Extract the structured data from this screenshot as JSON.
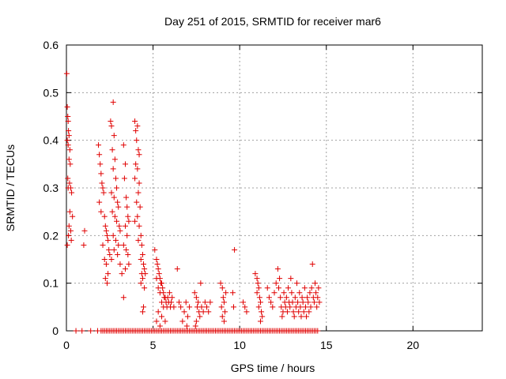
{
  "chart_data": {
    "type": "scatter",
    "title": "Day 251 of 2015, SRMTID for receiver mar6",
    "xlabel": "GPS time / hours",
    "ylabel": "SRMTID / TECUs",
    "xlim": [
      0,
      24
    ],
    "ylim": [
      0,
      0.6
    ],
    "xticks": [
      "0",
      "5",
      "10",
      "15",
      "20"
    ],
    "yticks": [
      "0",
      "0.1",
      "0.2",
      "0.3",
      "0.4",
      "0.5",
      "0.6"
    ],
    "grid": true,
    "marker": "+",
    "color": "#e00000",
    "series": [
      {
        "points": [
          [
            0.02,
            0.54
          ],
          [
            0.05,
            0.47
          ],
          [
            0.08,
            0.45
          ],
          [
            0.1,
            0.44
          ],
          [
            0.12,
            0.42
          ],
          [
            0.15,
            0.41
          ],
          [
            0.05,
            0.4
          ],
          [
            0.1,
            0.39
          ],
          [
            0.2,
            0.38
          ],
          [
            0.15,
            0.36
          ],
          [
            0.22,
            0.35
          ],
          [
            0.08,
            0.32
          ],
          [
            0.18,
            0.31
          ],
          [
            0.25,
            0.3
          ],
          [
            0.1,
            0.3
          ],
          [
            0.3,
            0.29
          ],
          [
            0.2,
            0.25
          ],
          [
            0.35,
            0.24
          ],
          [
            0.15,
            0.22
          ],
          [
            0.25,
            0.21
          ],
          [
            0.12,
            0.2
          ],
          [
            0.28,
            0.19
          ],
          [
            0.05,
            0.18
          ],
          [
            1.05,
            0.21
          ],
          [
            1.0,
            0.18
          ],
          [
            1.85,
            0.39
          ],
          [
            1.9,
            0.37
          ],
          [
            1.95,
            0.35
          ],
          [
            2.0,
            0.33
          ],
          [
            2.05,
            0.31
          ],
          [
            2.1,
            0.3
          ],
          [
            2.15,
            0.29
          ],
          [
            1.9,
            0.27
          ],
          [
            2.0,
            0.25
          ],
          [
            2.2,
            0.24
          ],
          [
            2.25,
            0.22
          ],
          [
            2.3,
            0.21
          ],
          [
            2.35,
            0.2
          ],
          [
            2.4,
            0.19
          ],
          [
            2.1,
            0.18
          ],
          [
            2.45,
            0.17
          ],
          [
            2.5,
            0.16
          ],
          [
            2.2,
            0.15
          ],
          [
            2.3,
            0.14
          ],
          [
            2.4,
            0.12
          ],
          [
            2.25,
            0.11
          ],
          [
            2.35,
            0.1
          ],
          [
            2.55,
            0.44
          ],
          [
            2.6,
            0.43
          ],
          [
            2.7,
            0.48
          ],
          [
            2.75,
            0.41
          ],
          [
            2.65,
            0.38
          ],
          [
            2.8,
            0.36
          ],
          [
            2.7,
            0.34
          ],
          [
            2.85,
            0.32
          ],
          [
            2.9,
            0.3
          ],
          [
            2.6,
            0.29
          ],
          [
            2.75,
            0.28
          ],
          [
            2.95,
            0.27
          ],
          [
            3.0,
            0.26
          ],
          [
            2.65,
            0.25
          ],
          [
            2.8,
            0.24
          ],
          [
            2.9,
            0.23
          ],
          [
            3.05,
            0.22
          ],
          [
            3.1,
            0.21
          ],
          [
            2.7,
            0.2
          ],
          [
            2.85,
            0.19
          ],
          [
            3.0,
            0.18
          ],
          [
            2.75,
            0.17
          ],
          [
            2.95,
            0.16
          ],
          [
            2.6,
            0.15
          ],
          [
            3.1,
            0.14
          ],
          [
            3.2,
            0.12
          ],
          [
            3.3,
            0.39
          ],
          [
            3.4,
            0.35
          ],
          [
            3.35,
            0.32
          ],
          [
            3.45,
            0.28
          ],
          [
            3.5,
            0.26
          ],
          [
            3.55,
            0.24
          ],
          [
            3.6,
            0.23
          ],
          [
            3.4,
            0.22
          ],
          [
            3.5,
            0.2
          ],
          [
            3.3,
            0.18
          ],
          [
            3.45,
            0.17
          ],
          [
            3.55,
            0.16
          ],
          [
            3.6,
            0.14
          ],
          [
            3.4,
            0.13
          ],
          [
            3.3,
            0.07
          ],
          [
            3.95,
            0.44
          ],
          [
            4.0,
            0.42
          ],
          [
            4.1,
            0.43
          ],
          [
            4.05,
            0.4
          ],
          [
            4.15,
            0.38
          ],
          [
            4.2,
            0.37
          ],
          [
            4.0,
            0.35
          ],
          [
            4.1,
            0.34
          ],
          [
            3.95,
            0.32
          ],
          [
            4.2,
            0.31
          ],
          [
            4.15,
            0.29
          ],
          [
            4.05,
            0.27
          ],
          [
            4.25,
            0.26
          ],
          [
            4.1,
            0.24
          ],
          [
            3.95,
            0.23
          ],
          [
            4.2,
            0.22
          ],
          [
            4.3,
            0.2
          ],
          [
            4.15,
            0.19
          ],
          [
            4.35,
            0.18
          ],
          [
            4.4,
            0.16
          ],
          [
            4.3,
            0.15
          ],
          [
            4.45,
            0.14
          ],
          [
            4.5,
            0.13
          ],
          [
            4.35,
            0.12
          ],
          [
            4.55,
            0.12
          ],
          [
            4.4,
            0.11
          ],
          [
            4.3,
            0.1
          ],
          [
            4.5,
            0.09
          ],
          [
            4.45,
            0.05
          ],
          [
            4.4,
            0.04
          ],
          [
            5.1,
            0.17
          ],
          [
            5.2,
            0.15
          ],
          [
            5.25,
            0.14
          ],
          [
            5.3,
            0.13
          ],
          [
            5.35,
            0.12
          ],
          [
            5.2,
            0.11
          ],
          [
            5.4,
            0.11
          ],
          [
            5.45,
            0.1
          ],
          [
            5.5,
            0.1
          ],
          [
            5.3,
            0.09
          ],
          [
            5.55,
            0.09
          ],
          [
            5.6,
            0.08
          ],
          [
            5.4,
            0.08
          ],
          [
            5.65,
            0.07
          ],
          [
            5.7,
            0.07
          ],
          [
            5.5,
            0.06
          ],
          [
            5.75,
            0.06
          ],
          [
            5.8,
            0.05
          ],
          [
            5.6,
            0.05
          ],
          [
            5.85,
            0.07
          ],
          [
            5.9,
            0.06
          ],
          [
            5.95,
            0.08
          ],
          [
            6.0,
            0.05
          ],
          [
            5.3,
            0.04
          ],
          [
            5.5,
            0.03
          ],
          [
            5.7,
            0.02
          ],
          [
            5.2,
            0.02
          ],
          [
            5.4,
            0.01
          ],
          [
            6.05,
            0.06
          ],
          [
            6.1,
            0.07
          ],
          [
            6.2,
            0.05
          ],
          [
            6.4,
            0.13
          ],
          [
            6.5,
            0.06
          ],
          [
            6.6,
            0.05
          ],
          [
            6.8,
            0.04
          ],
          [
            6.9,
            0.06
          ],
          [
            7.0,
            0.03
          ],
          [
            7.1,
            0.05
          ],
          [
            6.7,
            0.02
          ],
          [
            6.95,
            0.01
          ],
          [
            7.4,
            0.08
          ],
          [
            7.5,
            0.07
          ],
          [
            7.6,
            0.06
          ],
          [
            7.55,
            0.05
          ],
          [
            7.65,
            0.04
          ],
          [
            7.7,
            0.03
          ],
          [
            7.5,
            0.02
          ],
          [
            7.8,
            0.05
          ],
          [
            7.9,
            0.04
          ],
          [
            7.45,
            0.01
          ],
          [
            7.75,
            0.1
          ],
          [
            8.0,
            0.06
          ],
          [
            8.1,
            0.05
          ],
          [
            8.2,
            0.04
          ],
          [
            8.3,
            0.06
          ],
          [
            8.9,
            0.1
          ],
          [
            9.0,
            0.09
          ],
          [
            9.05,
            0.07
          ],
          [
            9.1,
            0.06
          ],
          [
            8.95,
            0.05
          ],
          [
            9.15,
            0.04
          ],
          [
            9.0,
            0.03
          ],
          [
            9.2,
            0.08
          ],
          [
            9.1,
            0.02
          ],
          [
            9.6,
            0.08
          ],
          [
            9.7,
            0.17
          ],
          [
            9.65,
            0.05
          ],
          [
            10.2,
            0.06
          ],
          [
            10.3,
            0.05
          ],
          [
            10.4,
            0.04
          ],
          [
            10.9,
            0.12
          ],
          [
            11.0,
            0.11
          ],
          [
            11.05,
            0.1
          ],
          [
            11.1,
            0.09
          ],
          [
            11.0,
            0.08
          ],
          [
            11.15,
            0.07
          ],
          [
            11.2,
            0.06
          ],
          [
            11.1,
            0.05
          ],
          [
            11.25,
            0.04
          ],
          [
            11.3,
            0.03
          ],
          [
            11.2,
            0.02
          ],
          [
            11.6,
            0.09
          ],
          [
            11.7,
            0.07
          ],
          [
            11.8,
            0.06
          ],
          [
            11.9,
            0.05
          ],
          [
            12.0,
            0.08
          ],
          [
            12.1,
            0.1
          ],
          [
            12.2,
            0.13
          ],
          [
            12.3,
            0.11
          ],
          [
            12.25,
            0.09
          ],
          [
            12.35,
            0.07
          ],
          [
            12.4,
            0.05
          ],
          [
            12.5,
            0.04
          ],
          [
            12.45,
            0.03
          ],
          [
            12.55,
            0.08
          ],
          [
            12.6,
            0.06
          ],
          [
            12.65,
            0.05
          ],
          [
            12.7,
            0.07
          ],
          [
            12.75,
            0.04
          ],
          [
            12.8,
            0.09
          ],
          [
            12.85,
            0.06
          ],
          [
            12.9,
            0.05
          ],
          [
            12.95,
            0.11
          ],
          [
            13.0,
            0.08
          ],
          [
            13.05,
            0.06
          ],
          [
            13.1,
            0.04
          ],
          [
            13.15,
            0.03
          ],
          [
            13.2,
            0.07
          ],
          [
            13.25,
            0.05
          ],
          [
            13.3,
            0.1
          ],
          [
            13.35,
            0.06
          ],
          [
            13.4,
            0.04
          ],
          [
            13.45,
            0.08
          ],
          [
            13.5,
            0.05
          ],
          [
            13.55,
            0.03
          ],
          [
            13.6,
            0.07
          ],
          [
            13.65,
            0.06
          ],
          [
            13.7,
            0.04
          ],
          [
            13.75,
            0.09
          ],
          [
            13.8,
            0.05
          ],
          [
            13.85,
            0.03
          ],
          [
            13.9,
            0.07
          ],
          [
            13.95,
            0.06
          ],
          [
            14.0,
            0.04
          ],
          [
            14.05,
            0.08
          ],
          [
            14.1,
            0.05
          ],
          [
            14.15,
            0.09
          ],
          [
            14.2,
            0.14
          ],
          [
            14.25,
            0.07
          ],
          [
            14.3,
            0.06
          ],
          [
            14.35,
            0.1
          ],
          [
            14.4,
            0.08
          ],
          [
            14.45,
            0.05
          ],
          [
            14.5,
            0.07
          ],
          [
            14.55,
            0.09
          ],
          [
            14.6,
            0.06
          ]
        ]
      }
    ],
    "zero_points_x": [
      0.55,
      0.9,
      1.4,
      1.8,
      2.0,
      2.1,
      2.2,
      2.3,
      2.4,
      2.5,
      2.6,
      2.7,
      2.8,
      2.9,
      3.0,
      3.1,
      3.2,
      3.3,
      3.4,
      3.5,
      3.6,
      3.7,
      3.8,
      3.9,
      4.0,
      4.1,
      4.2,
      4.3,
      4.4,
      4.5,
      4.6,
      4.7,
      4.8,
      4.9,
      5.0,
      5.1,
      5.2,
      5.3,
      5.4,
      5.5,
      5.6,
      5.7,
      5.8,
      5.9,
      6.0,
      6.1,
      6.2,
      6.3,
      6.4,
      6.5,
      6.6,
      6.7,
      6.8,
      6.9,
      7.0,
      7.1,
      7.2,
      7.3,
      7.4,
      7.5,
      7.6,
      7.7,
      7.8,
      7.9,
      8.0,
      8.1,
      8.2,
      8.3,
      8.4,
      8.5,
      8.6,
      8.7,
      8.8,
      8.9,
      9.0,
      9.1,
      9.2,
      9.3,
      9.4,
      9.5,
      9.6,
      9.7,
      9.8,
      9.9,
      10.0,
      10.1,
      10.2,
      10.3,
      10.4,
      10.5,
      10.6,
      10.7,
      10.8,
      10.9,
      11.0,
      11.1,
      11.2,
      11.3,
      11.4,
      11.5,
      11.6,
      11.7,
      11.8,
      11.9,
      12.0,
      12.1,
      12.2,
      12.3,
      12.4,
      12.5,
      12.6,
      12.7,
      12.8,
      12.9,
      13.0,
      13.1,
      13.2,
      13.3,
      13.4,
      13.5,
      13.6,
      13.7,
      13.8,
      13.9,
      14.0,
      14.1,
      14.2,
      14.3,
      14.4,
      14.5
    ]
  }
}
